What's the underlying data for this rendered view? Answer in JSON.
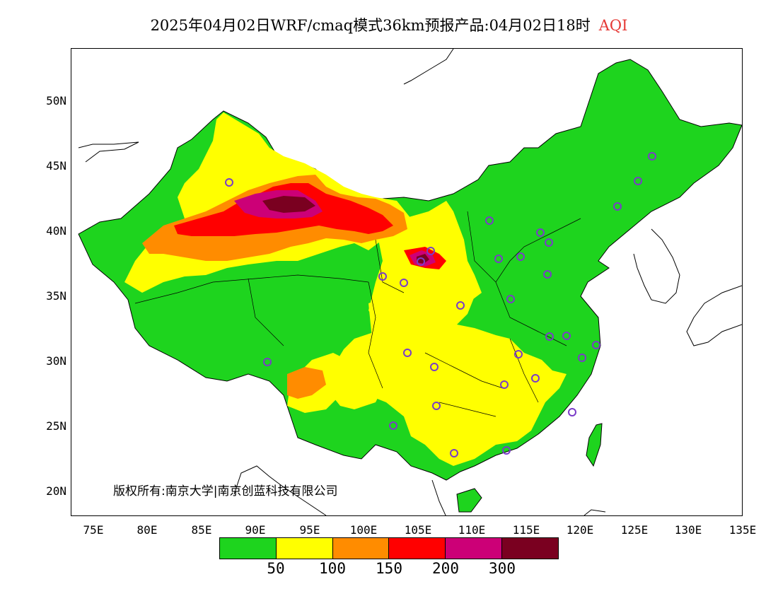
{
  "title": {
    "main": "2025年04月02日WRF/cmaq模式36km预报产品:04月02日18时",
    "variable": "AQI"
  },
  "copyright": "版权所有:南京大学|南京创蓝科技有限公司",
  "axes": {
    "latitude_labels": [
      "50N",
      "45N",
      "40N",
      "35N",
      "30N",
      "25N",
      "20N"
    ],
    "longitude_labels": [
      "75E",
      "80E",
      "85E",
      "90E",
      "95E",
      "100E",
      "105E",
      "110E",
      "115E",
      "120E",
      "125E",
      "130E",
      "135E"
    ]
  },
  "legend": {
    "colors": [
      "#1ed41e",
      "#ffff00",
      "#ff8c00",
      "#ff0000",
      "#cc0077",
      "#7a0020"
    ],
    "ticks": [
      "50",
      "100",
      "150",
      "200",
      "300"
    ]
  },
  "colors": {
    "station_marker": "#7a3cc8",
    "boundary": "#000000",
    "background": "#ffffff"
  }
}
